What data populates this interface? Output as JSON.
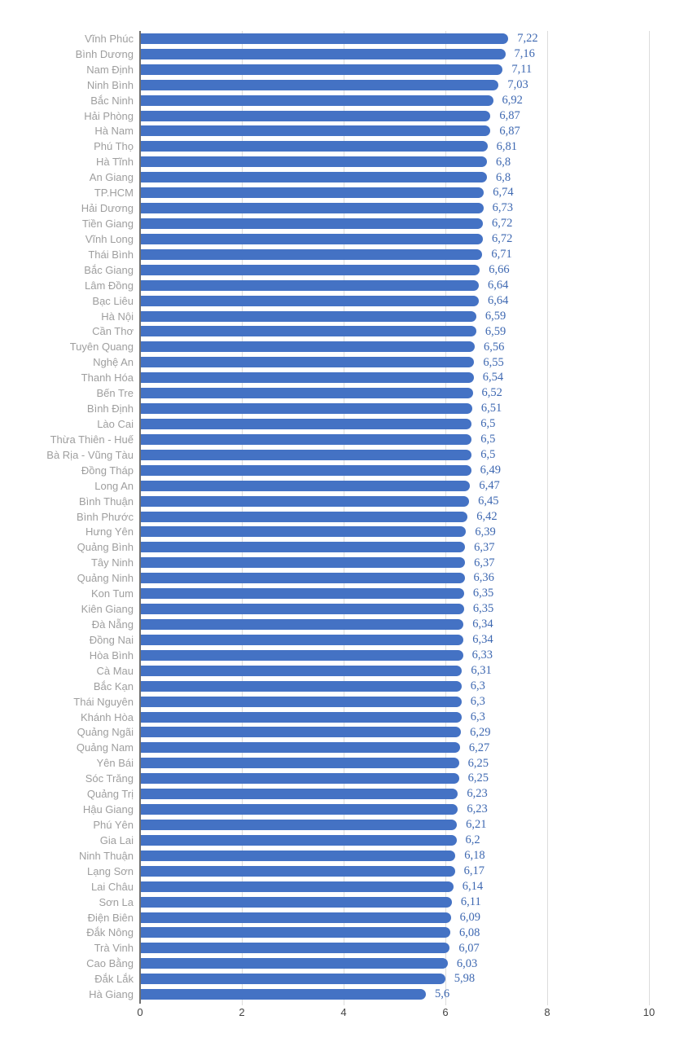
{
  "chart_data": {
    "type": "bar",
    "orientation": "horizontal",
    "title": "",
    "xlabel": "",
    "ylabel": "",
    "xlim": [
      0,
      10
    ],
    "x_ticks": [
      "0",
      "2",
      "4",
      "6",
      "8",
      "10"
    ],
    "grid": "vertical",
    "legend": "none",
    "decimal_separator": "comma",
    "bar_color": "#4472c4",
    "value_label_color": "#3e68b1",
    "category_label_color": "#9e9e9e",
    "gridline_color": "#dcdcdc",
    "axis_line_color": "#6f6f6f",
    "tick_label_color": "#444444",
    "categories": [
      "Vĩnh Phúc",
      "Bình Dương",
      "Nam Định",
      "Ninh Bình",
      "Bắc Ninh",
      "Hải Phòng",
      "Hà Nam",
      "Phú Thọ",
      "Hà Tĩnh",
      "An Giang",
      "TP.HCM",
      "Hải Dương",
      "Tiền Giang",
      "Vĩnh Long",
      "Thái Bình",
      "Bắc Giang",
      "Lâm Đồng",
      "Bạc Liêu",
      "Hà Nội",
      "Cần Thơ",
      "Tuyên Quang",
      "Nghệ An",
      "Thanh Hóa",
      "Bến Tre",
      "Bình Định",
      "Lào Cai",
      "Thừa Thiên - Huế",
      "Bà Rịa - Vũng Tàu",
      "Đồng Tháp",
      "Long An",
      "Bình Thuận",
      "Bình Phước",
      "Hưng Yên",
      "Quảng Bình",
      "Tây Ninh",
      "Quảng Ninh",
      "Kon Tum",
      "Kiên Giang",
      "Đà Nẵng",
      "Đồng Nai",
      "Hòa Bình",
      "Cà Mau",
      "Bắc Kạn",
      "Thái Nguyên",
      "Khánh Hòa",
      "Quảng Ngãi",
      "Quảng Nam",
      "Yên Bái",
      "Sóc Trăng",
      "Quảng Trị",
      "Hậu Giang",
      "Phú Yên",
      "Gia Lai",
      "Ninh Thuận",
      "Lạng Sơn",
      "Lai Châu",
      "Sơn La",
      "Điện Biên",
      "Đắk Nông",
      "Trà Vinh",
      "Cao Bằng",
      "Đắk Lắk",
      "Hà Giang"
    ],
    "values": [
      7.22,
      7.16,
      7.11,
      7.03,
      6.92,
      6.87,
      6.87,
      6.81,
      6.8,
      6.8,
      6.74,
      6.73,
      6.72,
      6.72,
      6.71,
      6.66,
      6.64,
      6.64,
      6.59,
      6.59,
      6.56,
      6.55,
      6.54,
      6.52,
      6.51,
      6.5,
      6.5,
      6.5,
      6.49,
      6.47,
      6.45,
      6.42,
      6.39,
      6.37,
      6.37,
      6.36,
      6.35,
      6.35,
      6.34,
      6.34,
      6.33,
      6.31,
      6.3,
      6.3,
      6.3,
      6.29,
      6.27,
      6.25,
      6.25,
      6.23,
      6.23,
      6.21,
      6.2,
      6.18,
      6.17,
      6.14,
      6.11,
      6.09,
      6.08,
      6.07,
      6.03,
      5.98,
      5.6
    ],
    "value_labels": [
      "7,22",
      "7,16",
      "7,11",
      "7,03",
      "6,92",
      "6,87",
      "6,87",
      "6,81",
      "6,8",
      "6,8",
      "6,74",
      "6,73",
      "6,72",
      "6,72",
      "6,71",
      "6,66",
      "6,64",
      "6,64",
      "6,59",
      "6,59",
      "6,56",
      "6,55",
      "6,54",
      "6,52",
      "6,51",
      "6,5",
      "6,5",
      "6,5",
      "6,49",
      "6,47",
      "6,45",
      "6,42",
      "6,39",
      "6,37",
      "6,37",
      "6,36",
      "6,35",
      "6,35",
      "6,34",
      "6,34",
      "6,33",
      "6,31",
      "6,3",
      "6,3",
      "6,3",
      "6,29",
      "6,27",
      "6,25",
      "6,25",
      "6,23",
      "6,23",
      "6,21",
      "6,2",
      "6,18",
      "6,17",
      "6,14",
      "6,11",
      "6,09",
      "6,08",
      "6,07",
      "6,03",
      "5,98",
      "5,6"
    ]
  }
}
